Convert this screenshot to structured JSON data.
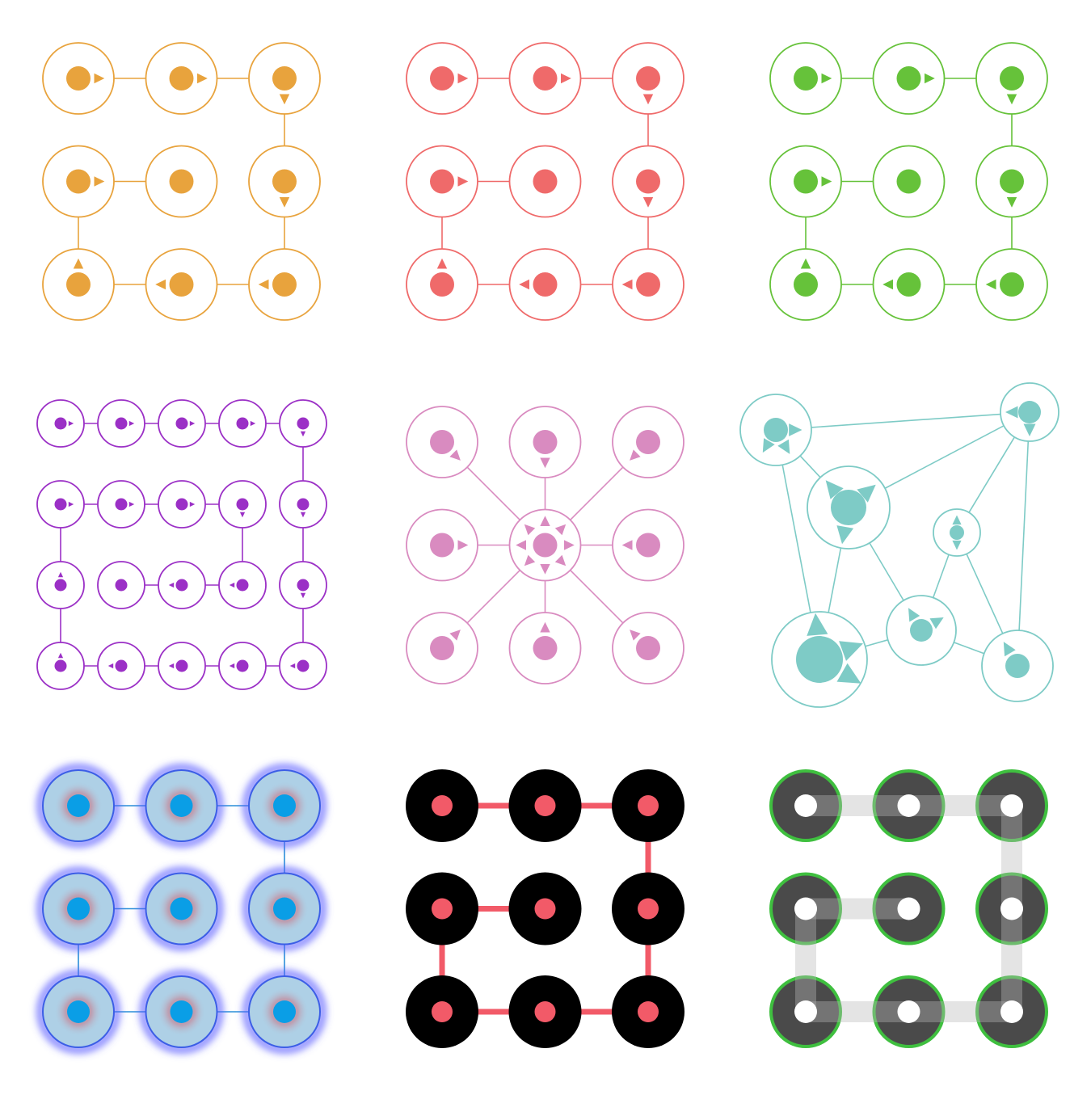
{
  "page": {
    "background": "#ffffff"
  },
  "panels": [
    {
      "id": "pattern-lock-orange",
      "grid": [
        3,
        3
      ],
      "style": "outline-arrows",
      "colors": {
        "ring": "#e8a33d",
        "dot": "#e8a33d",
        "line": "#e8a33d"
      },
      "path": [
        0,
        1,
        2,
        5,
        8,
        7,
        6,
        3,
        4
      ]
    },
    {
      "id": "pattern-lock-coral",
      "grid": [
        3,
        3
      ],
      "style": "outline-arrows",
      "colors": {
        "ring": "#ef6a6a",
        "dot": "#ef6a6a",
        "line": "#ef6a6a"
      },
      "path": [
        0,
        1,
        2,
        5,
        8,
        7,
        6,
        3,
        4
      ]
    },
    {
      "id": "pattern-lock-green",
      "grid": [
        3,
        3
      ],
      "style": "outline-arrows",
      "colors": {
        "ring": "#66c23a",
        "dot": "#66c23a",
        "line": "#66c23a"
      },
      "path": [
        0,
        1,
        2,
        5,
        8,
        7,
        6,
        3,
        4
      ]
    },
    {
      "id": "pattern-lock-purple",
      "grid": [
        5,
        4
      ],
      "style": "outline-arrows",
      "colors": {
        "ring": "#9b30c6",
        "dot": "#9b30c6",
        "line": "#9b30c6"
      },
      "path": [
        0,
        1,
        2,
        3,
        4,
        9,
        14,
        19,
        18,
        17,
        16,
        15,
        10,
        5,
        6,
        7,
        8,
        13,
        12,
        11
      ]
    },
    {
      "id": "pattern-lock-pink",
      "grid": [
        3,
        3
      ],
      "style": "outline-arrows",
      "colors": {
        "ring": "#d98bc0",
        "dot": "#d98bc0",
        "line": "#d98bc0"
      },
      "path": [],
      "hub": 4
    },
    {
      "id": "pattern-lock-teal",
      "style": "network",
      "colors": {
        "ring": "#7ecbc6",
        "dot": "#7ecbc6",
        "line": "#7ecbc6"
      }
    },
    {
      "id": "pattern-lock-blue-glow",
      "grid": [
        3,
        3
      ],
      "style": "glow",
      "colors": {
        "ring": "#3c5ee6",
        "fill": "#aed0e6",
        "halo": "#c87a8a",
        "dot": "#0a9ee6",
        "line": "#2a8fd8",
        "glow": "#5a5cff"
      },
      "path": [
        0,
        1,
        2,
        5,
        8,
        7,
        6,
        3,
        4
      ]
    },
    {
      "id": "pattern-lock-black-red",
      "grid": [
        3,
        3
      ],
      "style": "solid",
      "colors": {
        "fill": "#000000",
        "dot": "#f25a68",
        "line": "#f25a68"
      },
      "path": [
        0,
        1,
        2,
        5,
        8,
        7,
        6,
        3,
        4
      ]
    },
    {
      "id": "pattern-lock-gray-green",
      "grid": [
        3,
        3
      ],
      "style": "ringed",
      "colors": {
        "ring": "#3fbf3f",
        "fill": "#4a4a4a",
        "dot": "#ffffff",
        "line": "#b9b9b9"
      },
      "path": [
        0,
        1,
        2,
        5,
        8,
        7,
        6,
        3,
        4
      ]
    }
  ]
}
